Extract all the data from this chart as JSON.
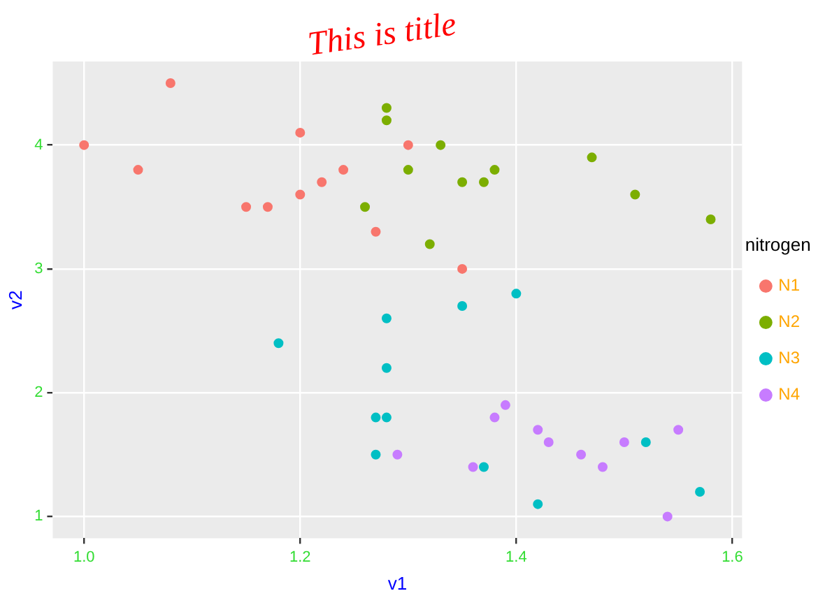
{
  "chart_data": {
    "type": "scatter",
    "title": "This is title",
    "xlabel": "v1",
    "ylabel": "v2",
    "legend_title": "nitrogen",
    "legend": "right",
    "grid": true,
    "marker": "circle",
    "xlim": [
      0.971,
      1.609
    ],
    "ylim": [
      0.825,
      4.675
    ],
    "xticks": [
      {
        "value": 1,
        "label": "1.0"
      },
      {
        "value": 1.2,
        "label": "1.2"
      },
      {
        "value": 1.4,
        "label": "1.4"
      },
      {
        "value": 1.6,
        "label": "1.6"
      }
    ],
    "yticks": [
      1,
      2,
      3,
      4
    ],
    "series": [
      {
        "name": "N1",
        "color": "#f8766d",
        "x": [
          1.0,
          1.05,
          1.08,
          1.15,
          1.17,
          1.2,
          1.2,
          1.22,
          1.24,
          1.27,
          1.3,
          1.35
        ],
        "values": [
          4.0,
          3.8,
          4.5,
          3.5,
          3.5,
          4.1,
          3.6,
          3.7,
          3.8,
          3.3,
          4.0,
          3.0
        ]
      },
      {
        "name": "N2",
        "color": "#7cae00",
        "x": [
          1.26,
          1.28,
          1.28,
          1.3,
          1.33,
          1.35,
          1.37,
          1.38,
          1.32,
          1.47,
          1.51,
          1.58
        ],
        "values": [
          3.5,
          4.3,
          4.2,
          3.8,
          4.0,
          3.7,
          3.7,
          3.8,
          3.2,
          3.9,
          3.6,
          3.4
        ]
      },
      {
        "name": "N3",
        "color": "#00bfc4",
        "x": [
          1.18,
          1.28,
          1.28,
          1.27,
          1.28,
          1.27,
          1.35,
          1.4,
          1.37,
          1.42,
          1.52,
          1.57
        ],
        "values": [
          2.4,
          2.6,
          2.2,
          1.8,
          1.8,
          1.5,
          2.7,
          2.8,
          1.4,
          1.1,
          1.6,
          1.2
        ]
      },
      {
        "name": "N4",
        "color": "#c77cff",
        "x": [
          1.29,
          1.36,
          1.38,
          1.39,
          1.42,
          1.43,
          1.46,
          1.48,
          1.5,
          1.54,
          1.55
        ],
        "values": [
          1.5,
          1.4,
          1.8,
          1.9,
          1.7,
          1.6,
          1.5,
          1.4,
          1.6,
          1.0,
          1.7
        ]
      }
    ]
  }
}
